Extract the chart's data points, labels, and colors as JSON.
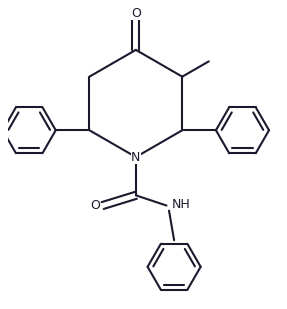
{
  "line_color": "#1a1a2e",
  "line_width": 1.5,
  "bg_color": "#ffffff",
  "figsize": [
    2.87,
    3.09
  ],
  "dpi": 100,
  "xlim": [
    -2.5,
    2.8
  ],
  "ylim": [
    -3.2,
    2.8
  ]
}
